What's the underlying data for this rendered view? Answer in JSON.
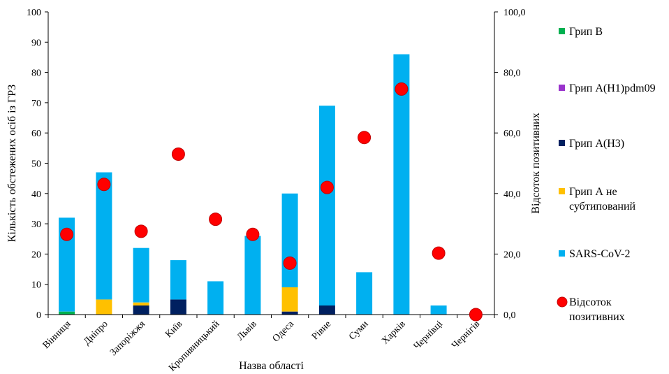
{
  "chart_data": {
    "type": "bar",
    "categories": [
      "Вінниця",
      "Дніпро",
      "Запоріжжя",
      "Київ",
      "Кропивницький",
      "Львів",
      "Одеса",
      "Рівне",
      "Суми",
      "Харків",
      "Чернівці",
      "Чернігів"
    ],
    "series": [
      {
        "name": "Грип В",
        "color": "#00b050",
        "values": [
          1,
          0,
          0,
          0,
          0,
          0,
          0,
          0,
          0,
          0,
          0,
          0
        ]
      },
      {
        "name": "Грип A(H1)pdm09",
        "color": "#9933cc",
        "values": [
          0,
          0,
          0,
          0,
          0,
          0,
          0,
          0,
          0,
          0,
          0,
          0
        ]
      },
      {
        "name": "Грип A(H3)",
        "color": "#002060",
        "values": [
          0,
          0,
          3,
          5,
          0,
          0,
          1,
          3,
          0,
          0,
          0,
          0
        ]
      },
      {
        "name": "Грип А не субтипований",
        "color": "#ffc000",
        "values": [
          0,
          5,
          1,
          0,
          0,
          0,
          8,
          0,
          0,
          0,
          0,
          0
        ]
      },
      {
        "name": "SARS-CoV-2",
        "color": "#00b0f0",
        "values": [
          31,
          42,
          18,
          13,
          11,
          26,
          31,
          66,
          14,
          86,
          3,
          0
        ]
      }
    ],
    "line_series": {
      "name": "Відсоток позитивних",
      "color": "#ff0000",
      "values": [
        26.5,
        43.0,
        27.5,
        53.0,
        31.5,
        26.5,
        17.0,
        42.0,
        58.5,
        74.5,
        20.3,
        0.0
      ]
    },
    "xlabel": "Назва області",
    "ylabel": "Кількість обстежених осіб із ГРЗ",
    "y2label": "Відсоток позитивних",
    "ylim": [
      0,
      100
    ],
    "y2lim": [
      0,
      100
    ],
    "yticks": [
      "0",
      "10",
      "20",
      "30",
      "40",
      "50",
      "60",
      "70",
      "80",
      "90",
      "100"
    ],
    "y2ticks": [
      "0,0",
      "20,0",
      "40,0",
      "60,0",
      "80,0",
      "100,0"
    ],
    "legend_labels": {
      "flu_b": [
        "Грип В"
      ],
      "h1": [
        "Грип A(H1)pdm09"
      ],
      "h3": [
        "Грип A(H3)"
      ],
      "a_unsub": [
        "Грип А не",
        "субтипований"
      ],
      "sars": [
        "SARS-CoV-2"
      ],
      "pct": [
        "Відсоток",
        "позитивних"
      ]
    },
    "grid": false,
    "legend_position": "right"
  }
}
